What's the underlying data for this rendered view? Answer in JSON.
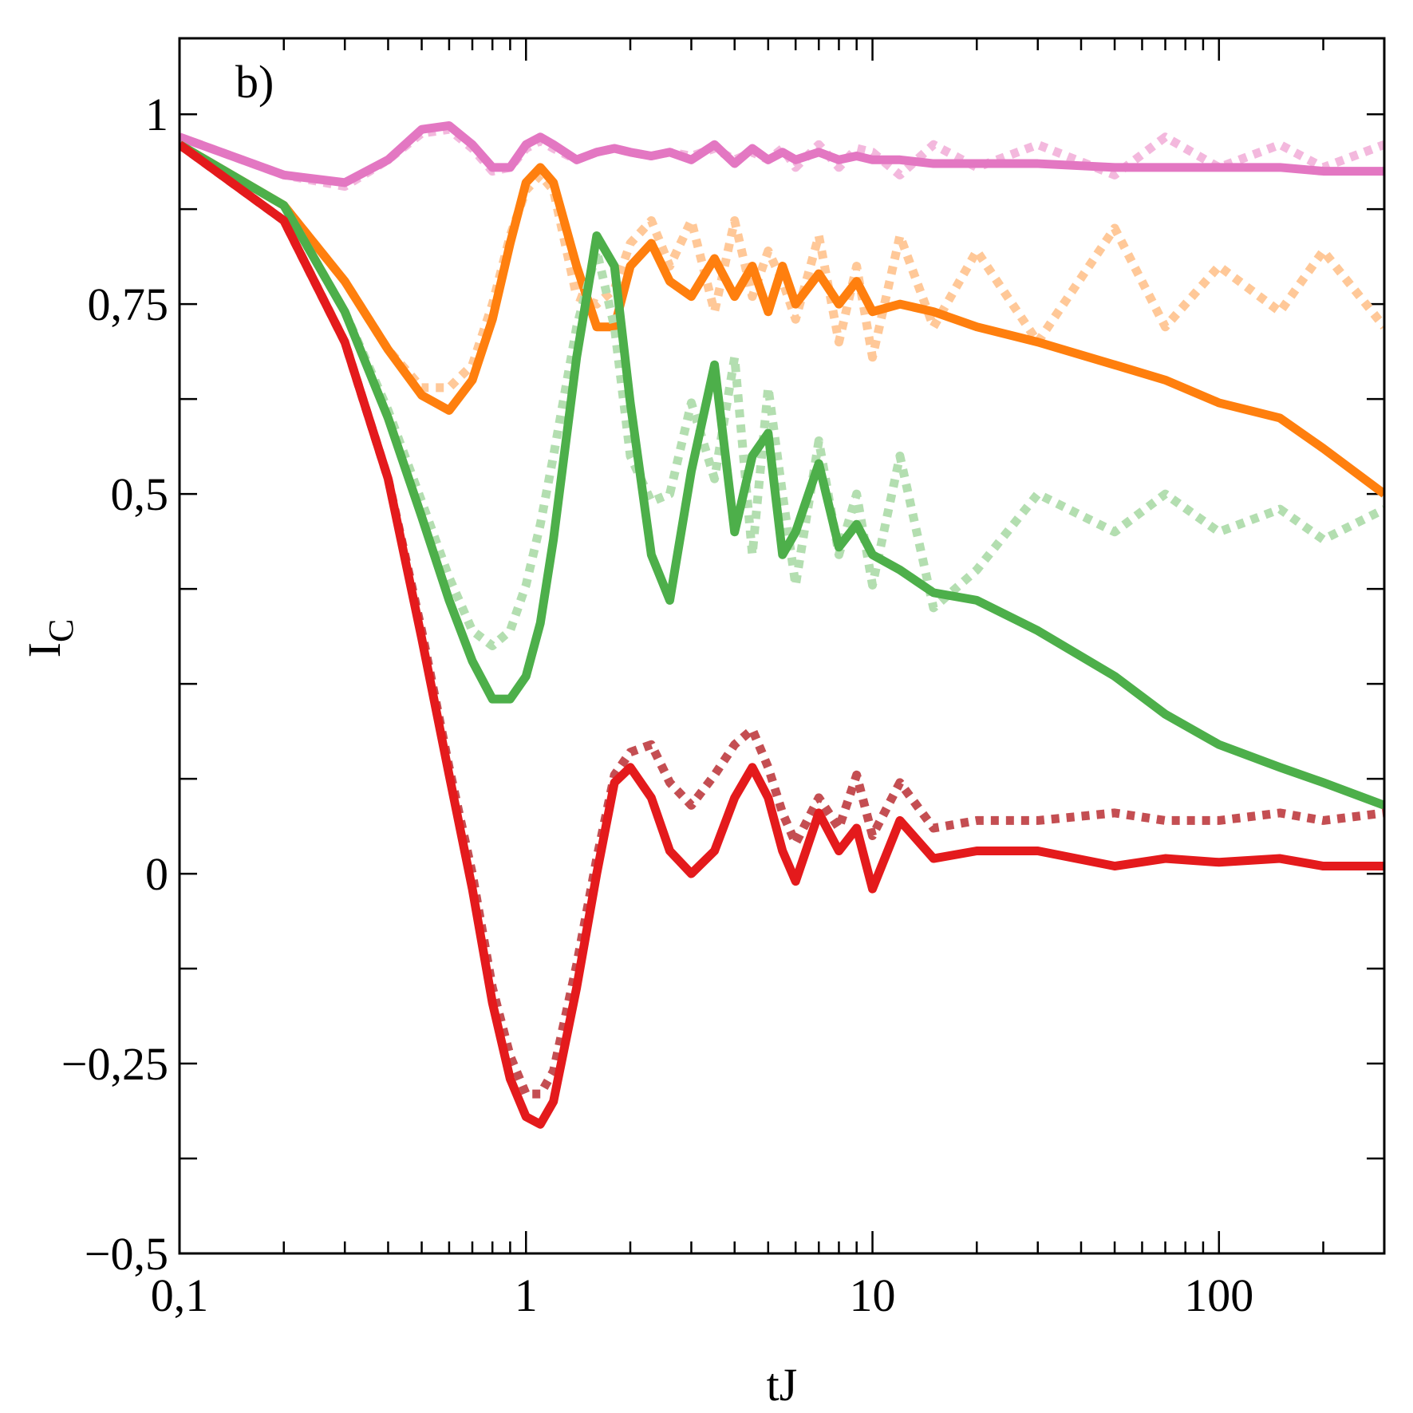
{
  "chart_data": {
    "type": "line",
    "annotation": "b)",
    "xlabel": "tJ",
    "ylabel": "I",
    "ylabel_sub": "C",
    "xscale": "log",
    "xlim": [
      0.1,
      300
    ],
    "xticks": [
      {
        "value": 0.1,
        "label": "0,1"
      },
      1,
      10,
      100
    ],
    "xminorticks": [
      0.2,
      0.3,
      0.4,
      0.5,
      0.6,
      0.7,
      0.8,
      0.9,
      2,
      3,
      4,
      5,
      6,
      7,
      8,
      9,
      20,
      30,
      40,
      50,
      60,
      70,
      80,
      90,
      200
    ],
    "ylim": [
      -0.5,
      1.1
    ],
    "yticks": [
      {
        "value": -0.5,
        "label": "−0,5"
      },
      {
        "value": -0.25,
        "label": "−0,25"
      },
      0,
      {
        "value": 0.5,
        "label": "0,5"
      },
      {
        "value": 0.75,
        "label": "0,75"
      },
      1
    ],
    "yminorticks": [
      -0.375,
      -0.125,
      0.125,
      0.25,
      0.375,
      0.625,
      0.875
    ],
    "x": [
      0.1,
      0.2,
      0.3,
      0.4,
      0.5,
      0.6,
      0.7,
      0.8,
      0.9,
      1,
      1.1,
      1.2,
      1.4,
      1.6,
      1.8,
      2,
      2.3,
      2.6,
      3,
      3.5,
      4,
      4.5,
      5,
      5.5,
      6,
      7,
      8,
      9,
      10,
      12,
      15,
      20,
      30,
      50,
      70,
      100,
      150,
      200,
      300
    ],
    "series": [
      {
        "color": "#f3b8dd",
        "style": "dotted",
        "values": [
          0.97,
          0.92,
          0.905,
          0.94,
          0.975,
          0.98,
          0.955,
          0.925,
          0.93,
          0.955,
          0.965,
          0.955,
          0.94,
          0.95,
          0.955,
          0.95,
          0.945,
          0.95,
          0.945,
          0.955,
          0.94,
          0.95,
          0.94,
          0.955,
          0.93,
          0.96,
          0.93,
          0.955,
          0.95,
          0.92,
          0.96,
          0.93,
          0.96,
          0.92,
          0.97,
          0.93,
          0.96,
          0.93,
          0.96
        ]
      },
      {
        "color": "#e377c2",
        "style": "solid",
        "values": [
          0.97,
          0.92,
          0.91,
          0.94,
          0.98,
          0.985,
          0.96,
          0.93,
          0.93,
          0.96,
          0.97,
          0.96,
          0.94,
          0.95,
          0.955,
          0.95,
          0.945,
          0.95,
          0.94,
          0.96,
          0.935,
          0.955,
          0.94,
          0.95,
          0.94,
          0.95,
          0.94,
          0.945,
          0.94,
          0.94,
          0.935,
          0.935,
          0.935,
          0.93,
          0.93,
          0.93,
          0.93,
          0.925,
          0.925
        ]
      },
      {
        "color": "#ffc898",
        "style": "dotted",
        "values": [
          0.96,
          0.88,
          0.78,
          0.69,
          0.64,
          0.64,
          0.67,
          0.75,
          0.84,
          0.9,
          0.92,
          0.9,
          0.76,
          0.75,
          0.77,
          0.83,
          0.86,
          0.8,
          0.86,
          0.74,
          0.86,
          0.76,
          0.82,
          0.78,
          0.73,
          0.84,
          0.7,
          0.8,
          0.68,
          0.84,
          0.72,
          0.82,
          0.7,
          0.85,
          0.72,
          0.8,
          0.74,
          0.82,
          0.72
        ]
      },
      {
        "color": "#ff7f0e",
        "style": "solid",
        "values": [
          0.96,
          0.88,
          0.78,
          0.69,
          0.63,
          0.61,
          0.65,
          0.73,
          0.83,
          0.91,
          0.93,
          0.91,
          0.8,
          0.72,
          0.72,
          0.8,
          0.83,
          0.78,
          0.76,
          0.81,
          0.76,
          0.8,
          0.74,
          0.8,
          0.75,
          0.79,
          0.75,
          0.78,
          0.74,
          0.75,
          0.74,
          0.72,
          0.7,
          0.67,
          0.65,
          0.62,
          0.6,
          0.56,
          0.5
        ]
      },
      {
        "color": "#b3deb0",
        "style": "dotted",
        "values": [
          0.96,
          0.88,
          0.74,
          0.61,
          0.49,
          0.39,
          0.32,
          0.3,
          0.32,
          0.38,
          0.46,
          0.55,
          0.72,
          0.82,
          0.72,
          0.55,
          0.49,
          0.5,
          0.62,
          0.52,
          0.68,
          0.42,
          0.64,
          0.5,
          0.38,
          0.57,
          0.42,
          0.5,
          0.38,
          0.55,
          0.35,
          0.4,
          0.5,
          0.45,
          0.5,
          0.45,
          0.48,
          0.44,
          0.48
        ]
      },
      {
        "color": "#4daf4a",
        "style": "solid",
        "values": [
          0.96,
          0.88,
          0.74,
          0.6,
          0.47,
          0.36,
          0.28,
          0.23,
          0.23,
          0.26,
          0.33,
          0.44,
          0.68,
          0.84,
          0.8,
          0.62,
          0.42,
          0.36,
          0.53,
          0.67,
          0.45,
          0.55,
          0.58,
          0.42,
          0.45,
          0.54,
          0.43,
          0.46,
          0.42,
          0.4,
          0.37,
          0.36,
          0.32,
          0.26,
          0.21,
          0.17,
          0.14,
          0.12,
          0.09
        ]
      },
      {
        "color": "#c44e52",
        "style": "dotted",
        "values": [
          0.96,
          0.86,
          0.7,
          0.52,
          0.32,
          0.14,
          0.0,
          -0.15,
          -0.24,
          -0.29,
          -0.29,
          -0.26,
          -0.12,
          0.02,
          0.13,
          0.16,
          0.17,
          0.12,
          0.09,
          0.13,
          0.17,
          0.19,
          0.14,
          0.08,
          0.04,
          0.1,
          0.06,
          0.13,
          0.05,
          0.12,
          0.06,
          0.07,
          0.07,
          0.08,
          0.07,
          0.07,
          0.08,
          0.07,
          0.08
        ]
      },
      {
        "color": "#e41a1c",
        "style": "solid",
        "values": [
          0.96,
          0.86,
          0.7,
          0.52,
          0.31,
          0.13,
          -0.02,
          -0.17,
          -0.27,
          -0.32,
          -0.33,
          -0.3,
          -0.15,
          0.0,
          0.12,
          0.14,
          0.1,
          0.03,
          0.0,
          0.03,
          0.1,
          0.14,
          0.1,
          0.03,
          -0.01,
          0.08,
          0.03,
          0.06,
          -0.02,
          0.07,
          0.02,
          0.03,
          0.03,
          0.01,
          0.02,
          0.015,
          0.02,
          0.01,
          0.01
        ]
      }
    ]
  }
}
